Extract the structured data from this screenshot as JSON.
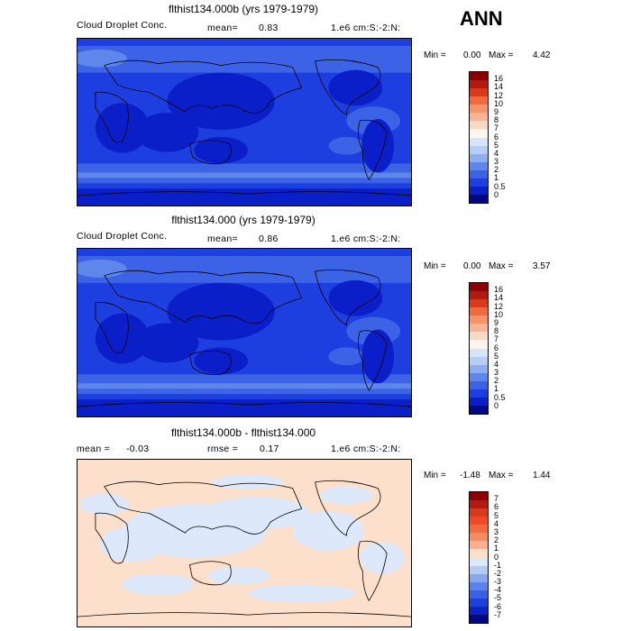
{
  "season_label": "ANN",
  "panels": [
    {
      "title": "flthist134.000b (yrs 1979-1979)",
      "left_text": "Cloud Droplet Conc.",
      "mean_label": "mean=",
      "mean_value": "0.83",
      "stat2_label": "",
      "stat2_value": "",
      "right_text": "1.e6 cm:S:-2:N:",
      "min_label": "Min =",
      "min_value": "0.00",
      "max_label": "Max =",
      "max_value": "4.42",
      "colorbar": {
        "labels": [
          "16",
          "14",
          "12",
          "10",
          "9",
          "8",
          "7",
          "6",
          "5",
          "4",
          "3",
          "2",
          "1",
          "0.5",
          "0"
        ],
        "colors": [
          "#8b0000",
          "#b01a10",
          "#d83a1c",
          "#ef6a3d",
          "#f5936a",
          "#f8b494",
          "#fbd8c2",
          "#fff5ee",
          "#d6e6fa",
          "#b6cdf5",
          "#8eaef0",
          "#5f86ea",
          "#3c63e6",
          "#1e3fe0",
          "#0a1fc8",
          "#000a80"
        ]
      },
      "map_style": "abs"
    },
    {
      "title": "flthist134.000 (yrs 1979-1979)",
      "left_text": "Cloud Droplet Conc.",
      "mean_label": "mean=",
      "mean_value": "0.86",
      "stat2_label": "",
      "stat2_value": "",
      "right_text": "1.e6 cm:S:-2:N:",
      "min_label": "Min =",
      "min_value": "0.00",
      "max_label": "Max =",
      "max_value": "3.57",
      "colorbar": {
        "labels": [
          "16",
          "14",
          "12",
          "10",
          "9",
          "8",
          "7",
          "6",
          "5",
          "4",
          "3",
          "2",
          "1",
          "0.5",
          "0"
        ],
        "colors": [
          "#8b0000",
          "#b01a10",
          "#d83a1c",
          "#ef6a3d",
          "#f5936a",
          "#f8b494",
          "#fbd8c2",
          "#fff5ee",
          "#d6e6fa",
          "#b6cdf5",
          "#8eaef0",
          "#5f86ea",
          "#3c63e6",
          "#1e3fe0",
          "#0a1fc8",
          "#000a80"
        ]
      },
      "map_style": "abs"
    },
    {
      "title": "flthist134.000b - flthist134.000",
      "left_text": "",
      "mean_label": "mean =",
      "mean_value": "-0.03",
      "stat2_label": "rmse =",
      "stat2_value": "0.17",
      "right_text": "1.e6 cm:S:-2:N:",
      "min_label": "Min =",
      "min_value": "-1.48",
      "max_label": "Max =",
      "max_value": "1.44",
      "colorbar": {
        "labels": [
          "7",
          "6",
          "5",
          "4",
          "3",
          "2",
          "1",
          "0",
          "-1",
          "-2",
          "-3",
          "-4",
          "-5",
          "-6",
          "-7"
        ],
        "colors": [
          "#8b0000",
          "#b01a10",
          "#d83a1c",
          "#ef4a25",
          "#f36a40",
          "#f68c62",
          "#f9b08f",
          "#fde0cc",
          "#dde9fa",
          "#b4cbf3",
          "#86a7ee",
          "#5a82ea",
          "#3b60e4",
          "#1d3fda",
          "#0b22c4",
          "#000a80"
        ]
      },
      "map_style": "diff"
    }
  ]
}
